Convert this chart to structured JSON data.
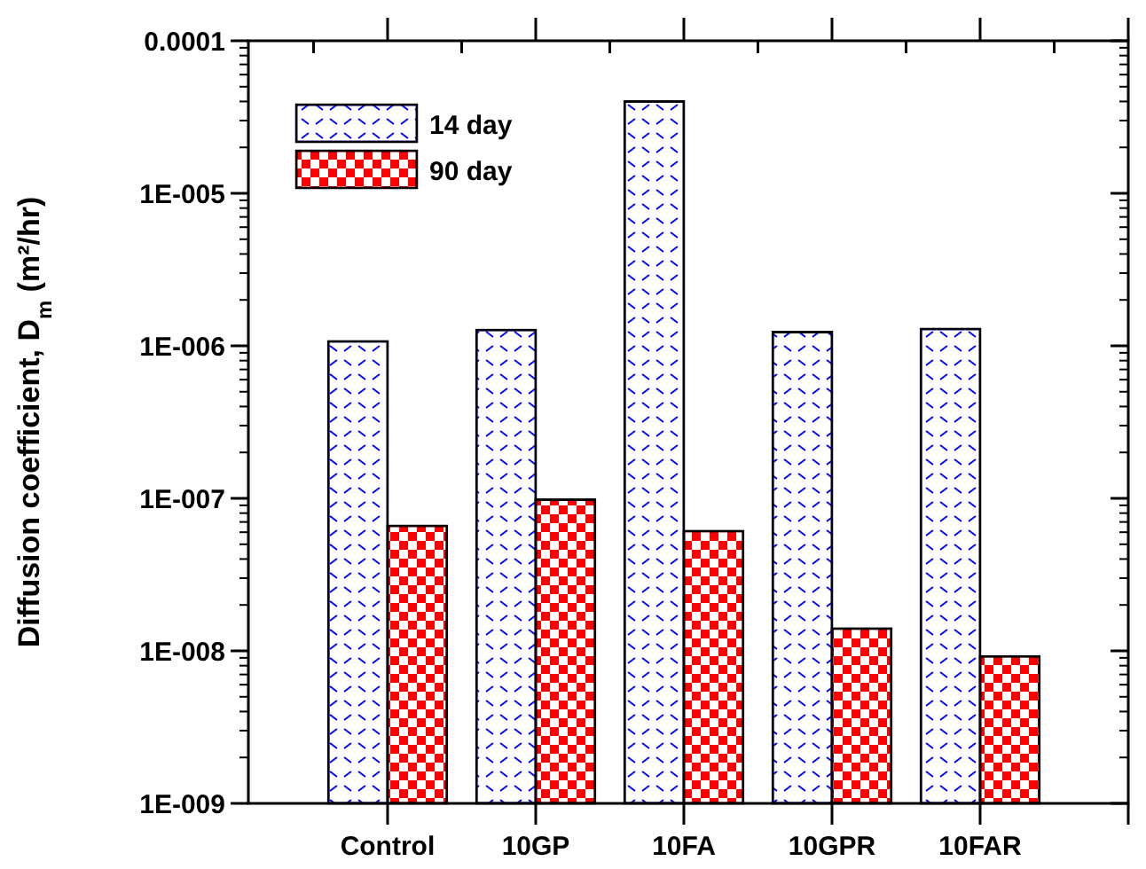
{
  "chart_data": {
    "type": "bar",
    "ylabel": "Diffusion coefficient, D$_{m}$ (m²/hr)",
    "categories": [
      "Control",
      "10GP",
      "10FA",
      "10GPR",
      "10FAR"
    ],
    "series": [
      {
        "name": "14 day",
        "color": "#0000ff",
        "values": [
          1.07e-06,
          1.27e-06,
          4e-05,
          1.23e-06,
          1.29e-06
        ]
      },
      {
        "name": "90 day",
        "color": "#ff0000",
        "values": [
          6.6e-08,
          9.8e-08,
          6.1e-08,
          1.4e-08,
          9.2e-09
        ]
      }
    ],
    "log": "y",
    "ylim": [
      1e-09,
      0.0001
    ],
    "yticks": [
      {
        "value": 1e-09,
        "label": "1E-009"
      },
      {
        "value": 1e-08,
        "label": "1E-008"
      },
      {
        "value": 1e-07,
        "label": "1E-007"
      },
      {
        "value": 1e-06,
        "label": "1E-006"
      },
      {
        "value": 1e-05,
        "label": "1E-005"
      },
      0.0001
    ],
    "legend": "top left",
    "grid": false
  }
}
